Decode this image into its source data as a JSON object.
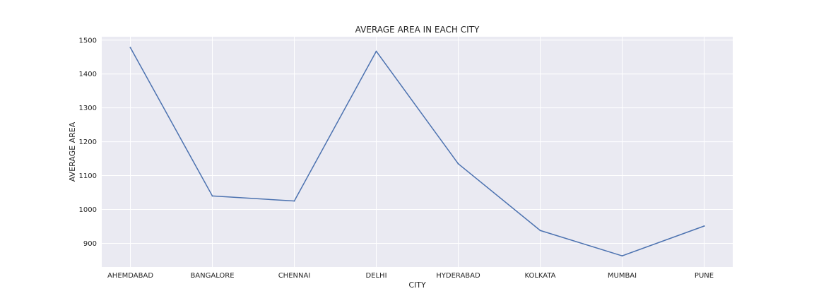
{
  "chart_data": {
    "type": "line",
    "title": "AVERAGE AREA IN EACH CITY",
    "xlabel": "CITY",
    "ylabel": "AVERAGE AREA",
    "categories": [
      "AHEMDABAD",
      "BANGALORE",
      "CHENNAI",
      "DELHI",
      "HYDERABAD",
      "KOLKATA",
      "MUMBAI",
      "PUNE"
    ],
    "series": [
      {
        "values": [
          1478,
          1040,
          1025,
          1467,
          1135,
          938,
          863,
          951
        ],
        "color": "#4c72b0"
      }
    ],
    "ylim": [
      830,
      1510
    ],
    "yticks": [
      900,
      1000,
      1100,
      1200,
      1300,
      1400,
      1500
    ],
    "grid": true,
    "legend": "none"
  }
}
